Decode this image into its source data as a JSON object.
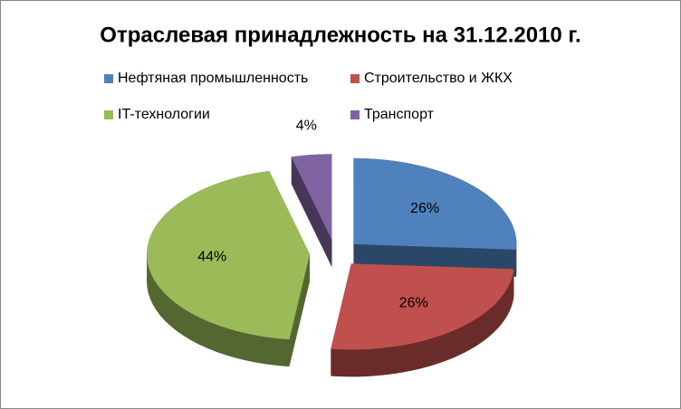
{
  "chart_data": {
    "type": "pie3d",
    "title": "Отраслевая принадлежность на 31.12.2010 г.",
    "categories": [
      "Нефтяная промышленность",
      "Строительство и ЖКХ",
      "IT-технологии",
      "Транспорт"
    ],
    "values": [
      26,
      26,
      44,
      4
    ],
    "value_labels": [
      "26%",
      "26%",
      "44%",
      "4%"
    ],
    "colors": [
      "#4f81bd",
      "#c0504d",
      "#9bbb59",
      "#8064a2"
    ],
    "legend": "top"
  }
}
